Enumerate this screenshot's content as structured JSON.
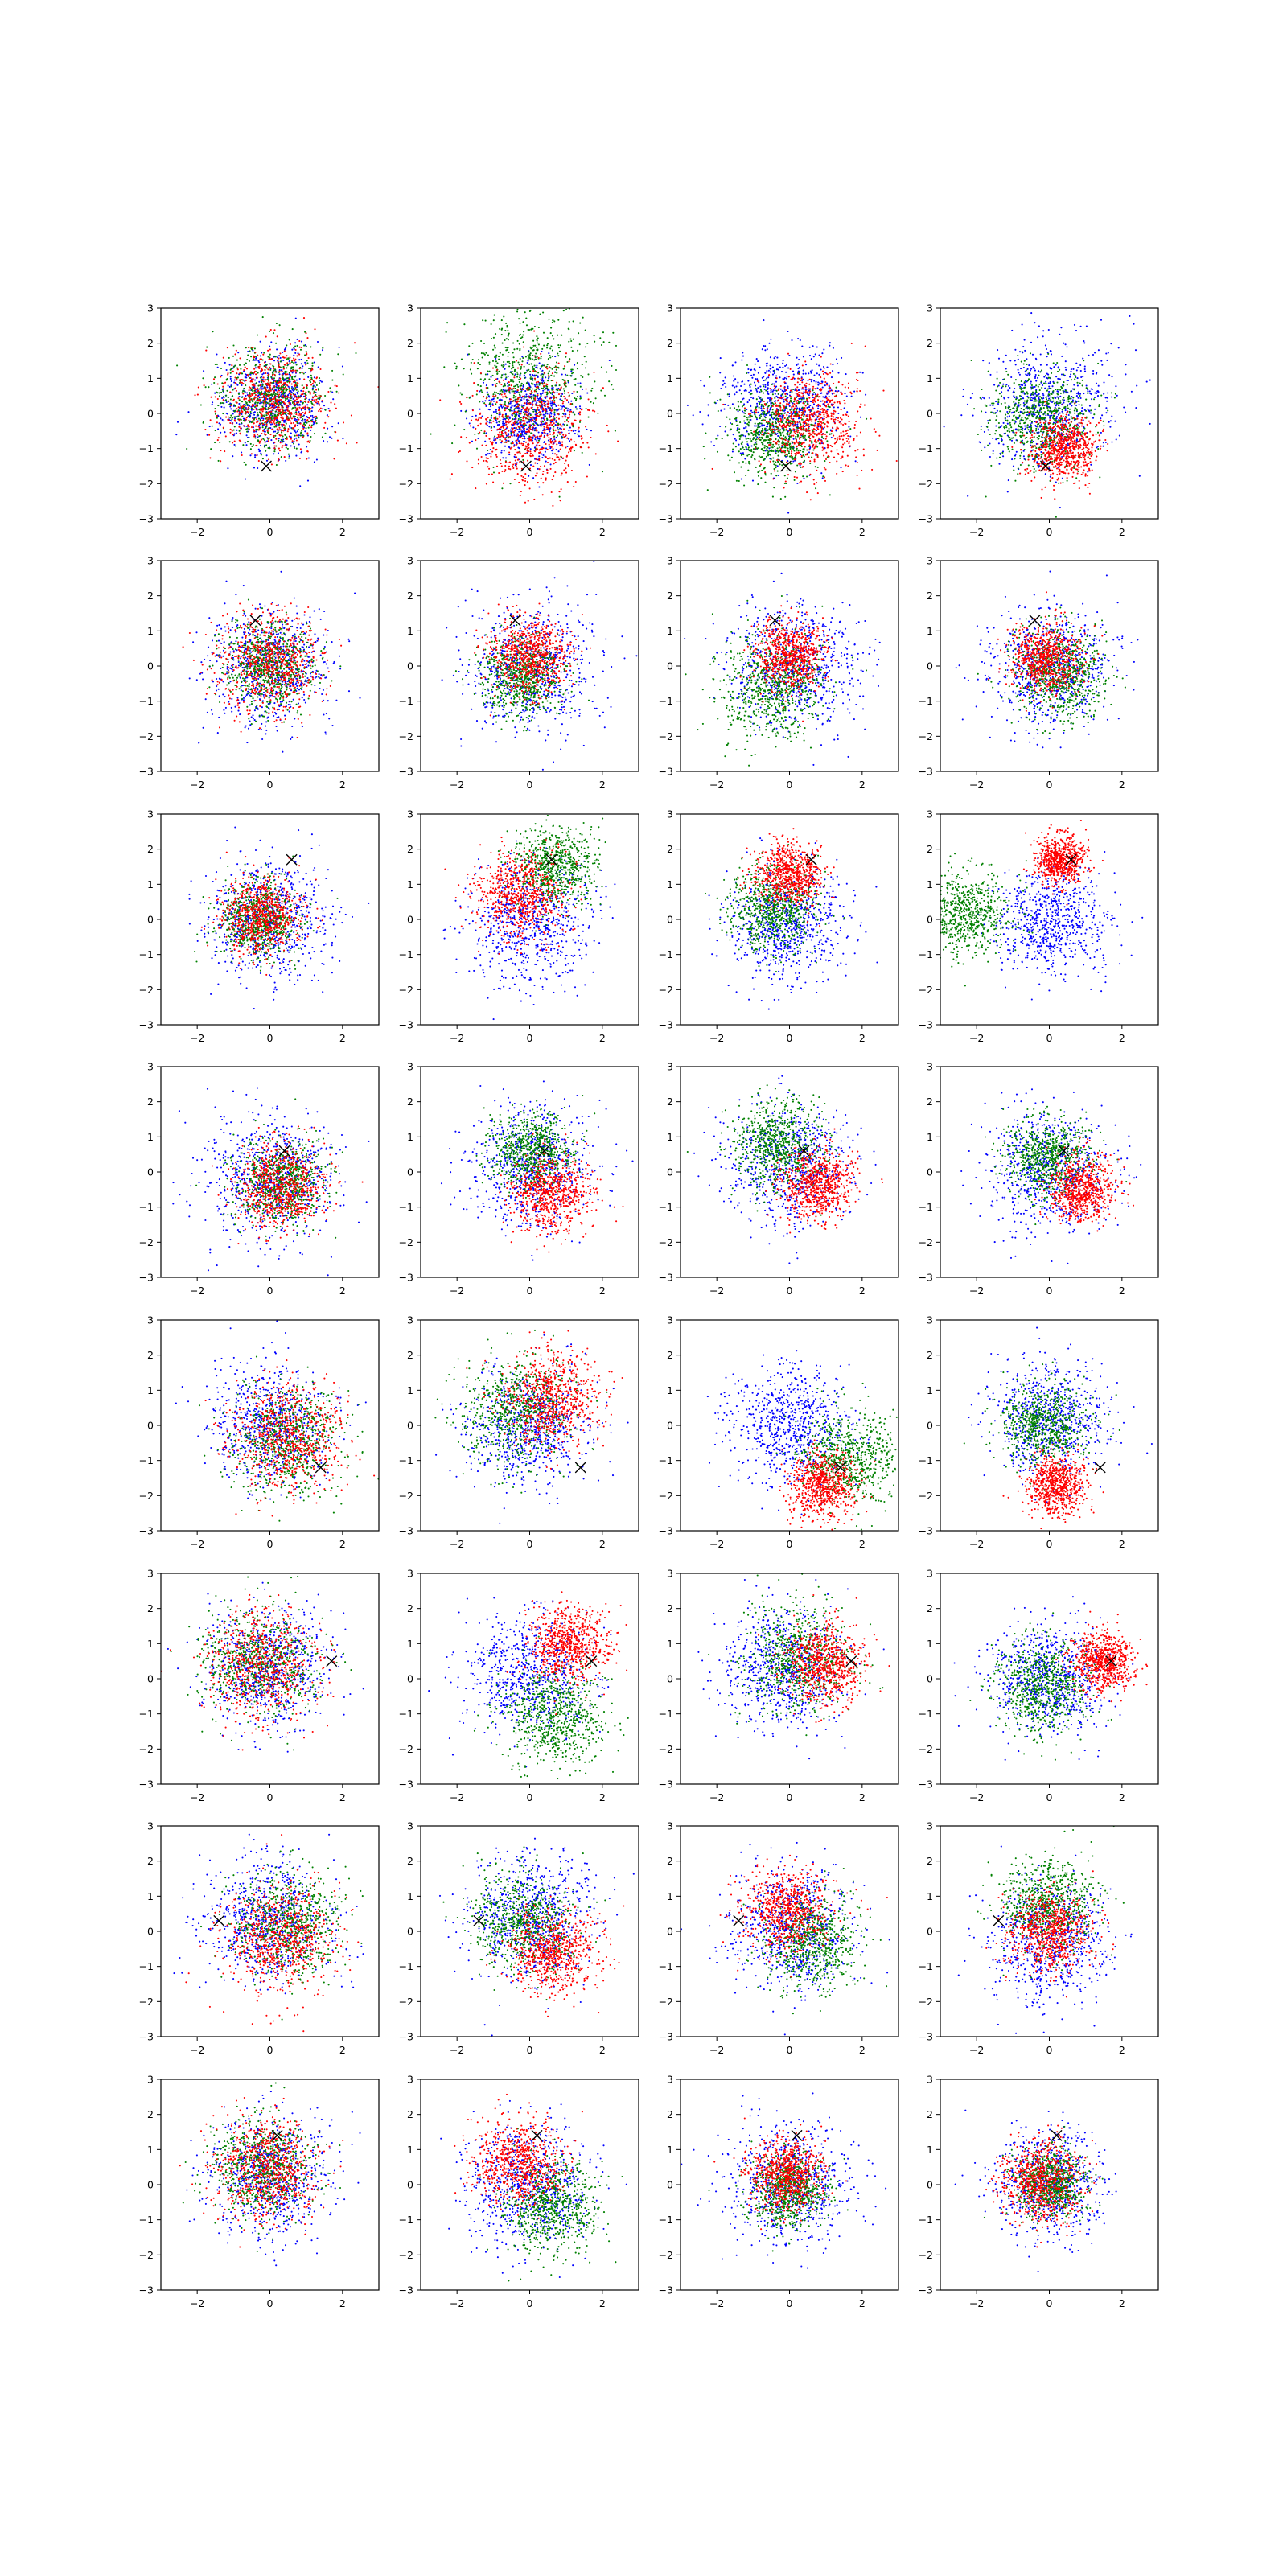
{
  "figure": {
    "layout": {
      "rows": 8,
      "cols": 4
    },
    "axes": {
      "xlim": [
        -3,
        3
      ],
      "ylim": [
        -3,
        3
      ],
      "xticks": [
        -2,
        0,
        2
      ],
      "yticks": [
        -3,
        -2,
        -1,
        0,
        1,
        2,
        3
      ],
      "grid": false
    },
    "colors": {
      "blue": "#0000ff",
      "green": "#008000",
      "red": "#ff0000",
      "marker": "#000000"
    },
    "points_per_series": 700,
    "marker_symbol": "x"
  },
  "chart_data": [
    {
      "type": "scatter",
      "row": 1,
      "col": 1,
      "marker": [
        -0.1,
        -1.5
      ],
      "series": [
        {
          "color": "blue",
          "center": [
            0,
            0.3
          ],
          "spread": 0.75
        },
        {
          "color": "green",
          "center": [
            0,
            0.4
          ],
          "spread": 0.75
        },
        {
          "color": "red",
          "center": [
            0.1,
            0.3
          ],
          "spread": 0.75
        }
      ]
    },
    {
      "type": "scatter",
      "row": 1,
      "col": 2,
      "marker": [
        -0.1,
        -1.5
      ],
      "series": [
        {
          "color": "blue",
          "center": [
            0,
            0
          ],
          "spread": 0.7
        },
        {
          "color": "green",
          "center": [
            0,
            1
          ],
          "spread": 0.95
        },
        {
          "color": "red",
          "center": [
            0,
            -0.4
          ],
          "spread": 0.8
        }
      ]
    },
    {
      "type": "scatter",
      "row": 1,
      "col": 3,
      "marker": [
        -0.1,
        -1.5
      ],
      "series": [
        {
          "color": "blue",
          "center": [
            -0.2,
            0.3
          ],
          "spread": 0.85
        },
        {
          "color": "green",
          "center": [
            -0.4,
            -0.6
          ],
          "spread": 0.65
        },
        {
          "color": "red",
          "center": [
            0.6,
            -0.2
          ],
          "spread": 0.7
        }
      ]
    },
    {
      "type": "scatter",
      "row": 1,
      "col": 4,
      "marker": [
        -0.1,
        -1.5
      ],
      "series": [
        {
          "color": "blue",
          "center": [
            0,
            0.2
          ],
          "spread": 0.9
        },
        {
          "color": "green",
          "center": [
            -0.2,
            -0.2
          ],
          "spread": 0.7
        },
        {
          "color": "red",
          "center": [
            0.4,
            -1.0
          ],
          "spread": 0.45
        }
      ]
    },
    {
      "type": "scatter",
      "row": 2,
      "col": 1,
      "marker": [
        -0.4,
        1.3
      ],
      "series": [
        {
          "color": "blue",
          "center": [
            0,
            0
          ],
          "spread": 0.85
        },
        {
          "color": "green",
          "center": [
            0,
            0
          ],
          "spread": 0.6
        },
        {
          "color": "red",
          "center": [
            0,
            0.1
          ],
          "spread": 0.7
        }
      ]
    },
    {
      "type": "scatter",
      "row": 2,
      "col": 2,
      "marker": [
        -0.4,
        1.3
      ],
      "series": [
        {
          "color": "blue",
          "center": [
            0,
            0
          ],
          "spread": 0.9
        },
        {
          "color": "green",
          "center": [
            -0.2,
            -0.3
          ],
          "spread": 0.55
        },
        {
          "color": "red",
          "center": [
            0,
            0.3
          ],
          "spread": 0.55
        }
      ]
    },
    {
      "type": "scatter",
      "row": 2,
      "col": 3,
      "marker": [
        -0.4,
        1.3
      ],
      "series": [
        {
          "color": "blue",
          "center": [
            0.2,
            0
          ],
          "spread": 0.9
        },
        {
          "color": "green",
          "center": [
            -0.5,
            -0.6
          ],
          "spread": 0.75
        },
        {
          "color": "red",
          "center": [
            0,
            0.3
          ],
          "spread": 0.5
        }
      ]
    },
    {
      "type": "scatter",
      "row": 2,
      "col": 4,
      "marker": [
        -0.4,
        1.3
      ],
      "series": [
        {
          "color": "blue",
          "center": [
            0.1,
            0
          ],
          "spread": 0.85
        },
        {
          "color": "green",
          "center": [
            0.3,
            -0.2
          ],
          "spread": 0.65
        },
        {
          "color": "red",
          "center": [
            -0.1,
            0.2
          ],
          "spread": 0.5
        }
      ]
    },
    {
      "type": "scatter",
      "row": 3,
      "col": 1,
      "marker": [
        0.6,
        1.7
      ],
      "series": [
        {
          "color": "blue",
          "center": [
            0,
            0
          ],
          "spread": 0.85
        },
        {
          "color": "green",
          "center": [
            -0.3,
            0
          ],
          "spread": 0.55
        },
        {
          "color": "red",
          "center": [
            -0.2,
            0.1
          ],
          "spread": 0.55
        }
      ]
    },
    {
      "type": "scatter",
      "row": 3,
      "col": 2,
      "marker": [
        0.6,
        1.7
      ],
      "series": [
        {
          "color": "blue",
          "center": [
            0,
            -0.1
          ],
          "spread": 0.85
        },
        {
          "color": "green",
          "center": [
            0.7,
            1.5
          ],
          "spread": 0.55
        },
        {
          "color": "red",
          "center": [
            -0.3,
            0.7
          ],
          "spread": 0.6
        }
      ]
    },
    {
      "type": "scatter",
      "row": 3,
      "col": 3,
      "marker": [
        0.6,
        1.7
      ],
      "series": [
        {
          "color": "blue",
          "center": [
            0,
            -0.2
          ],
          "spread": 0.8
        },
        {
          "color": "green",
          "center": [
            -0.4,
            0.3
          ],
          "spread": 0.6
        },
        {
          "color": "red",
          "center": [
            0,
            1.3
          ],
          "spread": 0.45
        }
      ]
    },
    {
      "type": "scatter",
      "row": 3,
      "col": 4,
      "marker": [
        0.6,
        1.7
      ],
      "series": [
        {
          "color": "blue",
          "center": [
            0.1,
            -0.1
          ],
          "spread": 0.75
        },
        {
          "color": "green",
          "center": [
            -2.3,
            0.2
          ],
          "spread": 0.6
        },
        {
          "color": "red",
          "center": [
            0.3,
            1.7
          ],
          "spread": 0.35
        }
      ]
    },
    {
      "type": "scatter",
      "row": 4,
      "col": 1,
      "marker": [
        0.4,
        0.6
      ],
      "series": [
        {
          "color": "blue",
          "center": [
            0,
            -0.2
          ],
          "spread": 0.9
        },
        {
          "color": "green",
          "center": [
            0.3,
            -0.3
          ],
          "spread": 0.6
        },
        {
          "color": "red",
          "center": [
            0.3,
            -0.4
          ],
          "spread": 0.6
        }
      ]
    },
    {
      "type": "scatter",
      "row": 4,
      "col": 2,
      "marker": [
        0.4,
        0.6
      ],
      "series": [
        {
          "color": "blue",
          "center": [
            0,
            0.1
          ],
          "spread": 0.85
        },
        {
          "color": "green",
          "center": [
            0.1,
            0.6
          ],
          "spread": 0.55
        },
        {
          "color": "red",
          "center": [
            0.6,
            -0.6
          ],
          "spread": 0.55
        }
      ]
    },
    {
      "type": "scatter",
      "row": 4,
      "col": 3,
      "marker": [
        0.4,
        0.6
      ],
      "series": [
        {
          "color": "blue",
          "center": [
            0,
            0.2
          ],
          "spread": 0.85
        },
        {
          "color": "green",
          "center": [
            -0.3,
            0.8
          ],
          "spread": 0.6
        },
        {
          "color": "red",
          "center": [
            0.8,
            -0.4
          ],
          "spread": 0.5
        }
      ]
    },
    {
      "type": "scatter",
      "row": 4,
      "col": 4,
      "marker": [
        0.4,
        0.6
      ],
      "series": [
        {
          "color": "blue",
          "center": [
            0,
            0
          ],
          "spread": 0.85
        },
        {
          "color": "green",
          "center": [
            0,
            0.4
          ],
          "spread": 0.55
        },
        {
          "color": "red",
          "center": [
            0.9,
            -0.5
          ],
          "spread": 0.45
        }
      ]
    },
    {
      "type": "scatter",
      "row": 5,
      "col": 1,
      "marker": [
        1.4,
        -1.2
      ],
      "series": [
        {
          "color": "blue",
          "center": [
            0,
            0
          ],
          "spread": 0.85
        },
        {
          "color": "green",
          "center": [
            0.5,
            -0.4
          ],
          "spread": 0.75
        },
        {
          "color": "red",
          "center": [
            0.5,
            -0.3
          ],
          "spread": 0.75
        }
      ]
    },
    {
      "type": "scatter",
      "row": 5,
      "col": 2,
      "marker": [
        1.4,
        -1.2
      ],
      "series": [
        {
          "color": "blue",
          "center": [
            0,
            -0.1
          ],
          "spread": 0.85
        },
        {
          "color": "green",
          "center": [
            -0.4,
            0.4
          ],
          "spread": 0.75
        },
        {
          "color": "red",
          "center": [
            0.6,
            0.8
          ],
          "spread": 0.65
        }
      ]
    },
    {
      "type": "scatter",
      "row": 5,
      "col": 3,
      "marker": [
        1.4,
        -1.2
      ],
      "series": [
        {
          "color": "blue",
          "center": [
            0,
            0
          ],
          "spread": 0.8
        },
        {
          "color": "green",
          "center": [
            1.6,
            -0.9
          ],
          "spread": 0.65
        },
        {
          "color": "red",
          "center": [
            0.9,
            -1.7
          ],
          "spread": 0.45
        }
      ]
    },
    {
      "type": "scatter",
      "row": 5,
      "col": 4,
      "marker": [
        1.4,
        -1.2
      ],
      "series": [
        {
          "color": "blue",
          "center": [
            0,
            0.2
          ],
          "spread": 0.8
        },
        {
          "color": "green",
          "center": [
            -0.2,
            0
          ],
          "spread": 0.6
        },
        {
          "color": "red",
          "center": [
            0.2,
            -1.7
          ],
          "spread": 0.4
        }
      ]
    },
    {
      "type": "scatter",
      "row": 6,
      "col": 1,
      "marker": [
        1.7,
        0.5
      ],
      "series": [
        {
          "color": "blue",
          "center": [
            0,
            0.3
          ],
          "spread": 0.85
        },
        {
          "color": "green",
          "center": [
            -0.3,
            0.5
          ],
          "spread": 0.75
        },
        {
          "color": "red",
          "center": [
            -0.2,
            0.4
          ],
          "spread": 0.75
        }
      ]
    },
    {
      "type": "scatter",
      "row": 6,
      "col": 2,
      "marker": [
        1.7,
        0.5
      ],
      "series": [
        {
          "color": "blue",
          "center": [
            0,
            0.1
          ],
          "spread": 0.85
        },
        {
          "color": "green",
          "center": [
            0.7,
            -1.1
          ],
          "spread": 0.7
        },
        {
          "color": "red",
          "center": [
            1.1,
            1.0
          ],
          "spread": 0.55
        }
      ]
    },
    {
      "type": "scatter",
      "row": 6,
      "col": 3,
      "marker": [
        1.7,
        0.5
      ],
      "series": [
        {
          "color": "blue",
          "center": [
            -0.2,
            0.3
          ],
          "spread": 0.85
        },
        {
          "color": "green",
          "center": [
            0.2,
            0.6
          ],
          "spread": 0.75
        },
        {
          "color": "red",
          "center": [
            1.0,
            0.4
          ],
          "spread": 0.55
        }
      ]
    },
    {
      "type": "scatter",
      "row": 6,
      "col": 4,
      "marker": [
        1.7,
        0.5
      ],
      "series": [
        {
          "color": "blue",
          "center": [
            0,
            0
          ],
          "spread": 0.8
        },
        {
          "color": "green",
          "center": [
            -0.2,
            -0.2
          ],
          "spread": 0.65
        },
        {
          "color": "red",
          "center": [
            1.5,
            0.5
          ],
          "spread": 0.4
        }
      ]
    },
    {
      "type": "scatter",
      "row": 7,
      "col": 1,
      "marker": [
        -1.4,
        0.3
      ],
      "series": [
        {
          "color": "blue",
          "center": [
            0,
            0.3
          ],
          "spread": 0.85
        },
        {
          "color": "green",
          "center": [
            0.5,
            0.2
          ],
          "spread": 0.75
        },
        {
          "color": "red",
          "center": [
            0.3,
            -0.2
          ],
          "spread": 0.75
        }
      ]
    },
    {
      "type": "scatter",
      "row": 7,
      "col": 2,
      "marker": [
        -1.4,
        0.3
      ],
      "series": [
        {
          "color": "blue",
          "center": [
            0,
            0.4
          ],
          "spread": 0.85
        },
        {
          "color": "green",
          "center": [
            -0.2,
            0.3
          ],
          "spread": 0.7
        },
        {
          "color": "red",
          "center": [
            0.6,
            -0.6
          ],
          "spread": 0.6
        }
      ]
    },
    {
      "type": "scatter",
      "row": 7,
      "col": 3,
      "marker": [
        -1.4,
        0.3
      ],
      "series": [
        {
          "color": "blue",
          "center": [
            0,
            0.1
          ],
          "spread": 0.85
        },
        {
          "color": "green",
          "center": [
            0.6,
            -0.3
          ],
          "spread": 0.65
        },
        {
          "color": "red",
          "center": [
            -0.1,
            0.6
          ],
          "spread": 0.6
        }
      ]
    },
    {
      "type": "scatter",
      "row": 7,
      "col": 4,
      "marker": [
        -1.4,
        0.3
      ],
      "series": [
        {
          "color": "blue",
          "center": [
            0,
            -0.3
          ],
          "spread": 0.85
        },
        {
          "color": "green",
          "center": [
            0,
            0.8
          ],
          "spread": 0.65
        },
        {
          "color": "red",
          "center": [
            0,
            0
          ],
          "spread": 0.55
        }
      ]
    },
    {
      "type": "scatter",
      "row": 8,
      "col": 1,
      "marker": [
        0.2,
        1.4
      ],
      "series": [
        {
          "color": "blue",
          "center": [
            0,
            0.2
          ],
          "spread": 0.85
        },
        {
          "color": "green",
          "center": [
            -0.2,
            0.5
          ],
          "spread": 0.7
        },
        {
          "color": "red",
          "center": [
            -0.1,
            0.4
          ],
          "spread": 0.7
        }
      ]
    },
    {
      "type": "scatter",
      "row": 8,
      "col": 2,
      "marker": [
        0.2,
        1.4
      ],
      "series": [
        {
          "color": "blue",
          "center": [
            0,
            0
          ],
          "spread": 0.85
        },
        {
          "color": "green",
          "center": [
            0.6,
            -0.6
          ],
          "spread": 0.65
        },
        {
          "color": "red",
          "center": [
            -0.3,
            0.6
          ],
          "spread": 0.6
        }
      ]
    },
    {
      "type": "scatter",
      "row": 8,
      "col": 3,
      "marker": [
        0.2,
        1.4
      ],
      "series": [
        {
          "color": "blue",
          "center": [
            0,
            0
          ],
          "spread": 0.85
        },
        {
          "color": "green",
          "center": [
            0,
            -0.2
          ],
          "spread": 0.5
        },
        {
          "color": "red",
          "center": [
            -0.1,
            0.3
          ],
          "spread": 0.5
        }
      ]
    },
    {
      "type": "scatter",
      "row": 8,
      "col": 4,
      "marker": [
        0.2,
        1.4
      ],
      "series": [
        {
          "color": "blue",
          "center": [
            0,
            0
          ],
          "spread": 0.75
        },
        {
          "color": "green",
          "center": [
            0,
            0
          ],
          "spread": 0.5
        },
        {
          "color": "red",
          "center": [
            -0.2,
            0.1
          ],
          "spread": 0.55
        }
      ]
    }
  ]
}
